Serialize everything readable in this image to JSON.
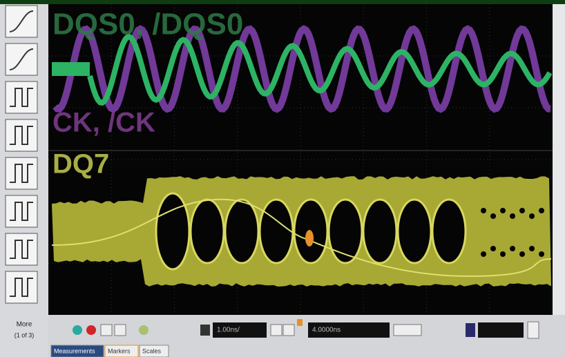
{
  "toolbar": {
    "more": "More",
    "more_page": "(1 of 3)"
  },
  "display": {
    "labels": [
      "DQS0, /DQS0",
      "CK, /CK",
      "DQ7"
    ]
  },
  "controls": {
    "timebase": "1.00ns/",
    "delay": "4.0000ns"
  },
  "tabs": [
    "Measurements",
    "Markers",
    "Scales"
  ]
}
